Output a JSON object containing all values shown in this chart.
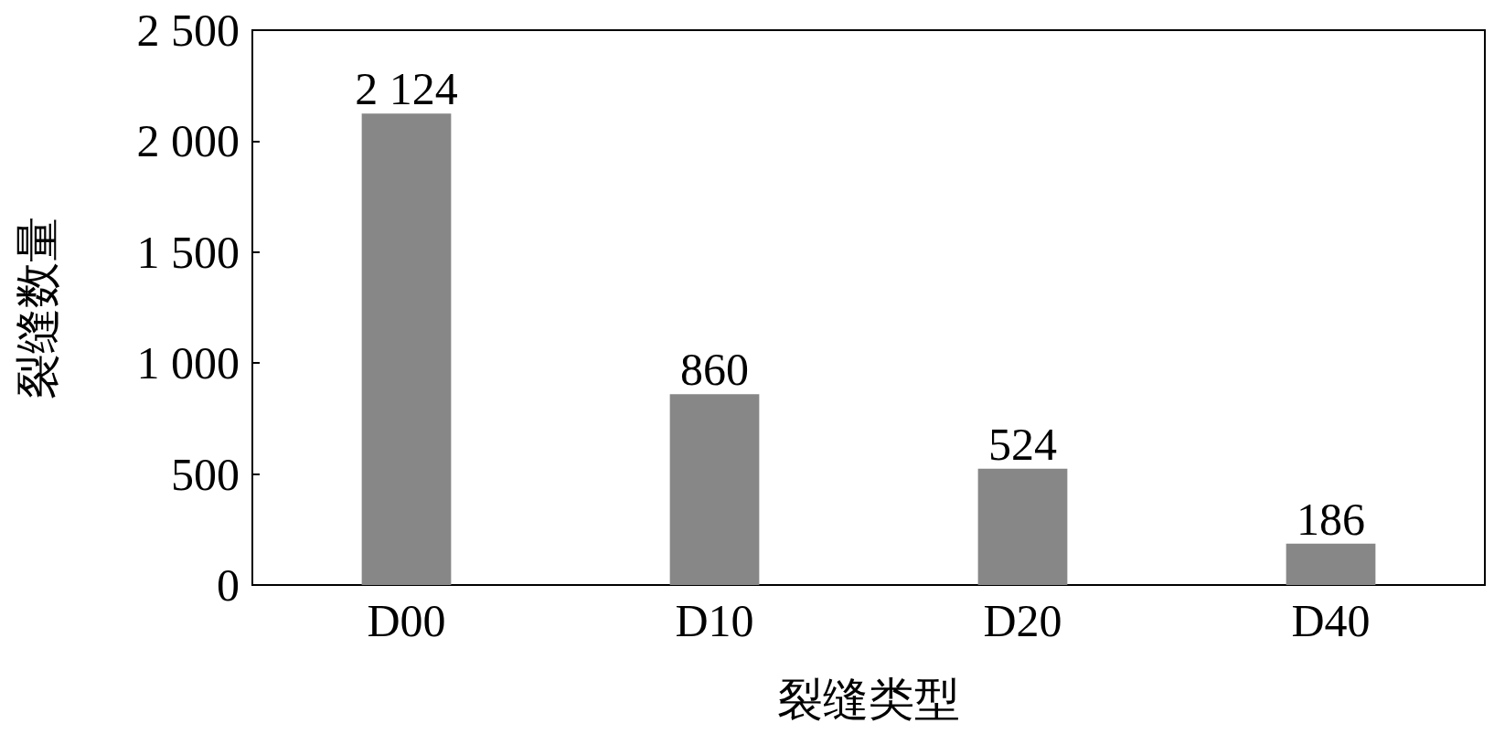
{
  "chart_data": {
    "type": "bar",
    "xlabel": "裂缝类型",
    "ylabel": "裂缝数量",
    "categories": [
      "D00",
      "D10",
      "D20",
      "D40"
    ],
    "values": [
      2124,
      860,
      524,
      186
    ],
    "value_labels": [
      "2 124",
      "860",
      "524",
      "186"
    ],
    "color": "#878787",
    "ylim": [
      0,
      2500
    ],
    "yticks": [
      0,
      {
        "value": 500,
        "label": "500"
      },
      {
        "value": 1000,
        "label": "1 000"
      },
      {
        "value": 1500,
        "label": "1 500"
      },
      {
        "value": 2000,
        "label": "2 000"
      },
      {
        "value": 2500,
        "label": "2 500"
      }
    ],
    "grid": false
  }
}
